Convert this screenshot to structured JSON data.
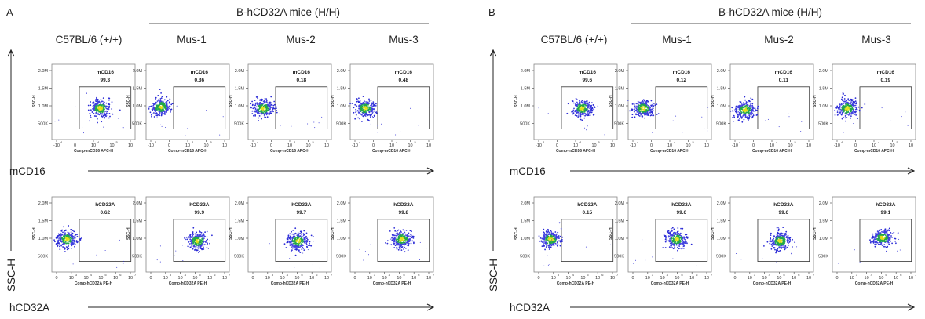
{
  "figure": {
    "panels": [
      {
        "id": "A",
        "letter": "A",
        "group_header": "B-hCD32A mice (H/H)",
        "column_labels": [
          "C57BL/6 (+/+)",
          "Mus-1",
          "Mus-2",
          "Mus-3"
        ],
        "y_axis_label": "SSC-H",
        "row_axis_labels": [
          "mCD16",
          "hCD32A"
        ]
      },
      {
        "id": "B",
        "letter": "B",
        "group_header": "B-hCD32A mice (H/H)",
        "column_labels": [
          "C57BL/6 (+/+)",
          "Mus-1",
          "Mus-2",
          "Mus-3"
        ],
        "y_axis_label": "SSC-H",
        "row_axis_labels": [
          "mCD16",
          "hCD32A"
        ]
      }
    ],
    "colors": {
      "dense": "#22a84a",
      "core": "#e3e01a",
      "sparse": "#2b2bd6",
      "outer": "#4040e0"
    }
  },
  "chart_data": {
    "type": "scatter",
    "subtype": "flow-cytometry-density-plot",
    "y_axis": {
      "label": "SSC-H",
      "ticks": [
        "2.0M",
        "1.5M",
        "1.0M",
        "500K"
      ]
    },
    "x_axes": {
      "mCD16": {
        "label": "Comp-mCD16 APC-H",
        "ticks": [
          "-10",
          "0",
          "10",
          "10",
          "10"
        ],
        "tick_exponents": [
          "4",
          "",
          "4",
          "5",
          ""
        ]
      },
      "hCD32A": {
        "label": "Comp-hCD32A PE-H",
        "ticks": [
          "0",
          "10",
          "10",
          "10",
          "10",
          "10"
        ],
        "tick_exponents": [
          "",
          "3",
          "4",
          "5",
          "6",
          "7"
        ]
      }
    },
    "panels": [
      {
        "panel": "A",
        "plots": [
          {
            "row": "mCD16",
            "column": "C57BL/6 (+/+)",
            "gate": "mCD16",
            "percent": "99.3",
            "cx": 0.58,
            "cy": 0.42
          },
          {
            "row": "mCD16",
            "column": "Mus-1",
            "gate": "mCD16",
            "percent": "0.36",
            "cx": 0.18,
            "cy": 0.4
          },
          {
            "row": "mCD16",
            "column": "Mus-2",
            "gate": "mCD16",
            "percent": "0.18",
            "cx": 0.18,
            "cy": 0.42
          },
          {
            "row": "mCD16",
            "column": "Mus-3",
            "gate": "mCD16",
            "percent": "0.48",
            "cx": 0.18,
            "cy": 0.42
          },
          {
            "row": "hCD32A",
            "column": "C57BL/6 (+/+)",
            "gate": "hCD32A",
            "percent": "0.62",
            "cx": 0.18,
            "cy": 0.4
          },
          {
            "row": "hCD32A",
            "column": "Mus-1",
            "gate": "hCD32A",
            "percent": "99.9",
            "cx": 0.62,
            "cy": 0.42
          },
          {
            "row": "hCD32A",
            "column": "Mus-2",
            "gate": "hCD32A",
            "percent": "99.7",
            "cx": 0.6,
            "cy": 0.42
          },
          {
            "row": "hCD32A",
            "column": "Mus-3",
            "gate": "hCD32A",
            "percent": "99.8",
            "cx": 0.62,
            "cy": 0.4
          }
        ]
      },
      {
        "panel": "B",
        "plots": [
          {
            "row": "mCD16",
            "column": "C57BL/6 (+/+)",
            "gate": "mCD16",
            "percent": "99.6",
            "cx": 0.58,
            "cy": 0.42
          },
          {
            "row": "mCD16",
            "column": "Mus-1",
            "gate": "mCD16",
            "percent": "0.12",
            "cx": 0.18,
            "cy": 0.42
          },
          {
            "row": "mCD16",
            "column": "Mus-2",
            "gate": "mCD16",
            "percent": "0.11",
            "cx": 0.18,
            "cy": 0.44
          },
          {
            "row": "mCD16",
            "column": "Mus-3",
            "gate": "mCD16",
            "percent": "0.19",
            "cx": 0.18,
            "cy": 0.42
          },
          {
            "row": "hCD32A",
            "column": "C57BL/6 (+/+)",
            "gate": "hCD32A",
            "percent": "0.15",
            "cx": 0.2,
            "cy": 0.4
          },
          {
            "row": "hCD32A",
            "column": "Mus-1",
            "gate": "hCD32A",
            "percent": "99.6",
            "cx": 0.58,
            "cy": 0.4
          },
          {
            "row": "hCD32A",
            "column": "Mus-2",
            "gate": "hCD32A",
            "percent": "99.6",
            "cx": 0.6,
            "cy": 0.42
          },
          {
            "row": "hCD32A",
            "column": "Mus-3",
            "gate": "hCD32A",
            "percent": "99.1",
            "cx": 0.6,
            "cy": 0.38
          }
        ]
      }
    ]
  }
}
